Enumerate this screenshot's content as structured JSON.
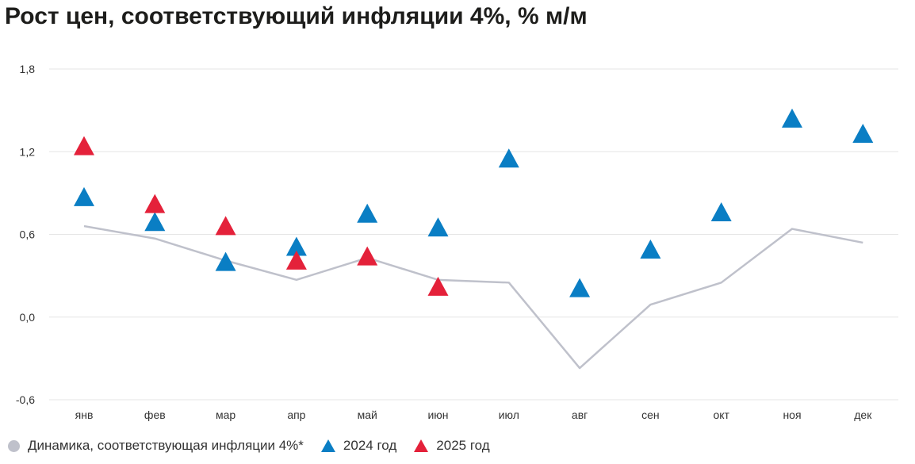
{
  "title": "Рост цен, соответствующий инфляции 4%, % м/м",
  "colors": {
    "line": "#bfc1cb",
    "s2024": "#0a7ec4",
    "s2025": "#e4213a",
    "grid": "#e6e6e6",
    "text": "#333333"
  },
  "chart_data": {
    "type": "line",
    "title": "Рост цен, соответствующий инфляции 4%, % м/м",
    "categories": [
      "янв",
      "фев",
      "мар",
      "апр",
      "май",
      "июн",
      "июл",
      "авг",
      "сен",
      "окт",
      "ноя",
      "дек"
    ],
    "ylim": [
      -0.6,
      1.8
    ],
    "yticks": [
      "1,8",
      "1,2",
      "0,6",
      "0,0",
      "-0,6"
    ],
    "ytick_values": [
      1.8,
      1.2,
      0.6,
      0.0,
      -0.6
    ],
    "grid": true,
    "legend_position": "bottom-left",
    "series": [
      {
        "name": "Динамика, соответствующая инфляции 4%*",
        "mark": "line",
        "values": [
          0.66,
          0.57,
          0.41,
          0.27,
          0.43,
          0.27,
          0.25,
          -0.37,
          0.09,
          0.25,
          0.64,
          0.54
        ]
      },
      {
        "name": "2024 год",
        "mark": "triangle",
        "values": [
          0.86,
          0.68,
          0.39,
          0.5,
          0.74,
          0.64,
          1.14,
          0.2,
          0.48,
          0.75,
          1.43,
          1.32
        ]
      },
      {
        "name": "2025 год",
        "mark": "triangle",
        "values": [
          1.23,
          0.81,
          0.65,
          0.4,
          0.43,
          0.21,
          null,
          null,
          null,
          null,
          null,
          null
        ]
      }
    ]
  }
}
